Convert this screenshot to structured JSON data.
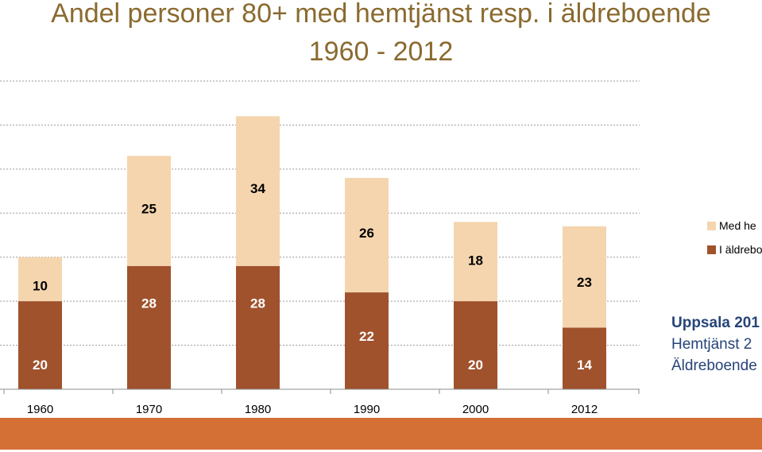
{
  "chart_data": {
    "type": "bar",
    "stacked": true,
    "title": [
      "Andel personer 80+ med hemtjänst resp. i äldreboende",
      "1960 - 2012"
    ],
    "categories": [
      "1960",
      "1970",
      "1980",
      "1990",
      "2000",
      "2012"
    ],
    "series": [
      {
        "name": "I äldreboende",
        "values": [
          20,
          28,
          28,
          22,
          20,
          14
        ],
        "color": "#a0522d"
      },
      {
        "name": "Med hemtjänst",
        "values": [
          10,
          25,
          34,
          26,
          18,
          23
        ],
        "color": "#f5d5ae"
      }
    ],
    "ylim": [
      0,
      70
    ],
    "gridlines": true,
    "legend_position": "right",
    "legend_visible_text": [
      "Med he",
      "I äldrebo"
    ]
  },
  "side_note": {
    "heading": "Uppsala 201",
    "line1": "Hemtjänst 2",
    "line2": "Äldreboende"
  },
  "colors": {
    "title": "#8a6a2f",
    "note": "#264478",
    "band": "#d46f35"
  }
}
